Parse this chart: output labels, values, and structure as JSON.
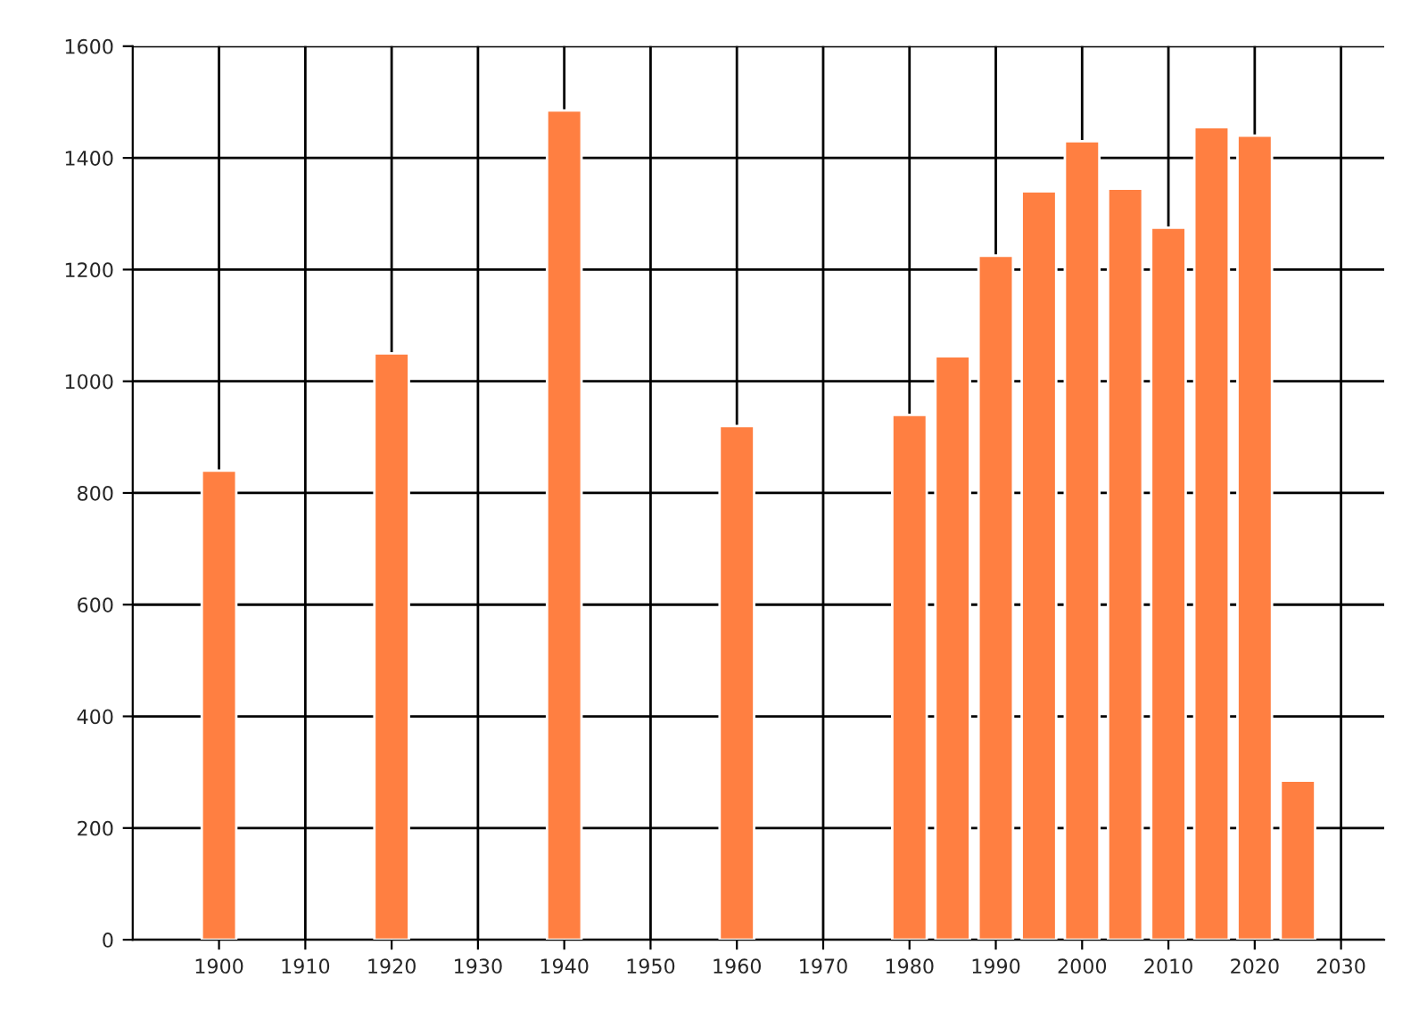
{
  "chart_data": {
    "type": "bar",
    "x": [
      1900,
      1920,
      1940,
      1960,
      1980,
      1985,
      1990,
      1995,
      2000,
      2005,
      2010,
      2015,
      2020,
      2025
    ],
    "series": [
      {
        "color": "#ff7f41",
        "values": [
          840,
          1050,
          1485,
          920,
          940,
          1045,
          1225,
          1340,
          1430,
          1345,
          1275,
          1455,
          1440,
          285
        ]
      }
    ],
    "xlim": [
      1890,
      2035
    ],
    "xticks": [
      1900,
      1910,
      1920,
      1930,
      1940,
      1950,
      1960,
      1970,
      1980,
      1990,
      2000,
      2010,
      2020,
      2030
    ],
    "ylim": [
      0,
      1600
    ],
    "yticks": [
      0,
      200,
      400,
      600,
      800,
      1000,
      1200,
      1400,
      1600
    ],
    "grid": true,
    "legend": false
  }
}
